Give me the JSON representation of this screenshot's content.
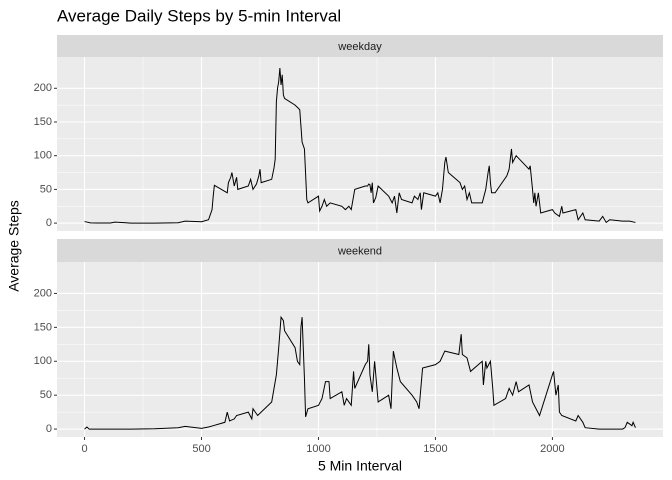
{
  "chart_data": {
    "type": "line",
    "title": "Average Daily Steps by 5-min Interval",
    "x_label": "5 Min Interval",
    "y_label": "Average Steps",
    "color": "#000000",
    "grid": true,
    "xlim": [
      -117.75,
      2472.75
    ],
    "xticks": [
      0,
      500,
      1000,
      1500,
      2000
    ],
    "ylim": [
      -11.7,
      246.4
    ],
    "yticks": [
      0,
      50,
      100,
      150,
      200
    ],
    "panels": [
      {
        "label": "weekday",
        "x": [
          0,
          25,
          55,
          110,
          130,
          200,
          300,
          400,
          430,
          500,
          530,
          545,
          550,
          555,
          610,
          615,
          625,
          630,
          640,
          650,
          655,
          700,
          710,
          720,
          735,
          745,
          750,
          755,
          800,
          810,
          815,
          820,
          825,
          830,
          835,
          840,
          845,
          850,
          855,
          900,
          915,
          920,
          930,
          940,
          950,
          955,
          1000,
          1005,
          1015,
          1025,
          1035,
          1050,
          1100,
          1115,
          1130,
          1140,
          1150,
          1155,
          1200,
          1210,
          1215,
          1220,
          1225,
          1230,
          1235,
          1245,
          1255,
          1300,
          1315,
          1325,
          1335,
          1345,
          1355,
          1400,
          1410,
          1425,
          1435,
          1440,
          1450,
          1500,
          1510,
          1520,
          1530,
          1540,
          1545,
          1555,
          1605,
          1615,
          1625,
          1635,
          1645,
          1655,
          1700,
          1715,
          1725,
          1730,
          1735,
          1740,
          1755,
          1805,
          1815,
          1825,
          1830,
          1845,
          1900,
          1905,
          1915,
          1920,
          1925,
          1930,
          1940,
          1950,
          2000,
          2010,
          2030,
          2040,
          2045,
          2100,
          2110,
          2130,
          2140,
          2200,
          2215,
          2230,
          2245,
          2300,
          2330,
          2355
        ],
        "values": [
          2.3,
          0.4,
          0.1,
          0.2,
          1.5,
          0,
          0,
          0.5,
          3,
          2,
          5,
          20,
          40,
          56,
          45,
          60,
          68,
          75,
          55,
          68,
          50,
          55,
          65,
          50,
          58,
          70,
          80,
          60,
          65,
          82,
          95,
          180,
          200,
          210,
          230,
          205,
          220,
          190,
          185,
          175,
          170,
          168,
          120,
          110,
          35,
          30,
          40,
          18,
          25,
          35,
          25,
          30,
          25,
          20,
          25,
          20,
          40,
          50,
          55,
          55,
          58,
          57,
          45,
          60,
          30,
          38,
          55,
          40,
          30,
          40,
          15,
          45,
          35,
          30,
          40,
          35,
          45,
          20,
          45,
          40,
          45,
          30,
          50,
          90,
          98,
          75,
          60,
          50,
          55,
          35,
          45,
          30,
          30,
          50,
          75,
          85,
          60,
          45,
          45,
          70,
          80,
          110,
          90,
          100,
          80,
          85,
          50,
          30,
          45,
          25,
          45,
          15,
          20,
          15,
          10,
          25,
          15,
          20,
          5,
          15,
          5,
          3,
          10,
          1,
          5,
          3,
          3,
          1
        ]
      },
      {
        "label": "weekend",
        "x": [
          0,
          10,
          20,
          100,
          200,
          300,
          400,
          430,
          500,
          530,
          550,
          600,
          610,
          620,
          640,
          650,
          700,
          715,
          720,
          730,
          740,
          800,
          810,
          820,
          830,
          840,
          850,
          855,
          900,
          910,
          920,
          925,
          930,
          940,
          945,
          955,
          1000,
          1015,
          1030,
          1045,
          1050,
          1100,
          1110,
          1120,
          1140,
          1150,
          1155,
          1200,
          1210,
          1215,
          1220,
          1230,
          1240,
          1255,
          1300,
          1310,
          1320,
          1335,
          1350,
          1400,
          1420,
          1430,
          1445,
          1500,
          1520,
          1540,
          1600,
          1610,
          1615,
          1635,
          1650,
          1700,
          1705,
          1715,
          1720,
          1735,
          1745,
          1750,
          1800,
          1815,
          1830,
          1845,
          1855,
          1900,
          1915,
          1930,
          1945,
          2000,
          2005,
          2015,
          2025,
          2030,
          2040,
          2100,
          2110,
          2130,
          2140,
          2200,
          2250,
          2300,
          2310,
          2320,
          2340,
          2345,
          2355
        ],
        "values": [
          0,
          3,
          0,
          0,
          0,
          0.5,
          2,
          4,
          1,
          3,
          5,
          10,
          25,
          12,
          15,
          20,
          25,
          15,
          30,
          25,
          20,
          40,
          60,
          80,
          120,
          165,
          160,
          145,
          120,
          100,
          95,
          150,
          165,
          75,
          18,
          30,
          35,
          45,
          70,
          70,
          45,
          55,
          35,
          45,
          35,
          85,
          60,
          95,
          100,
          125,
          80,
          55,
          100,
          40,
          50,
          30,
          115,
          90,
          70,
          50,
          40,
          30,
          90,
          95,
          100,
          115,
          110,
          140,
          110,
          105,
          85,
          100,
          65,
          100,
          90,
          100,
          60,
          35,
          45,
          60,
          50,
          70,
          55,
          65,
          40,
          30,
          20,
          80,
          85,
          50,
          65,
          25,
          20,
          12,
          20,
          10,
          2,
          0,
          0,
          0,
          2,
          10,
          5,
          10,
          2
        ]
      }
    ]
  }
}
